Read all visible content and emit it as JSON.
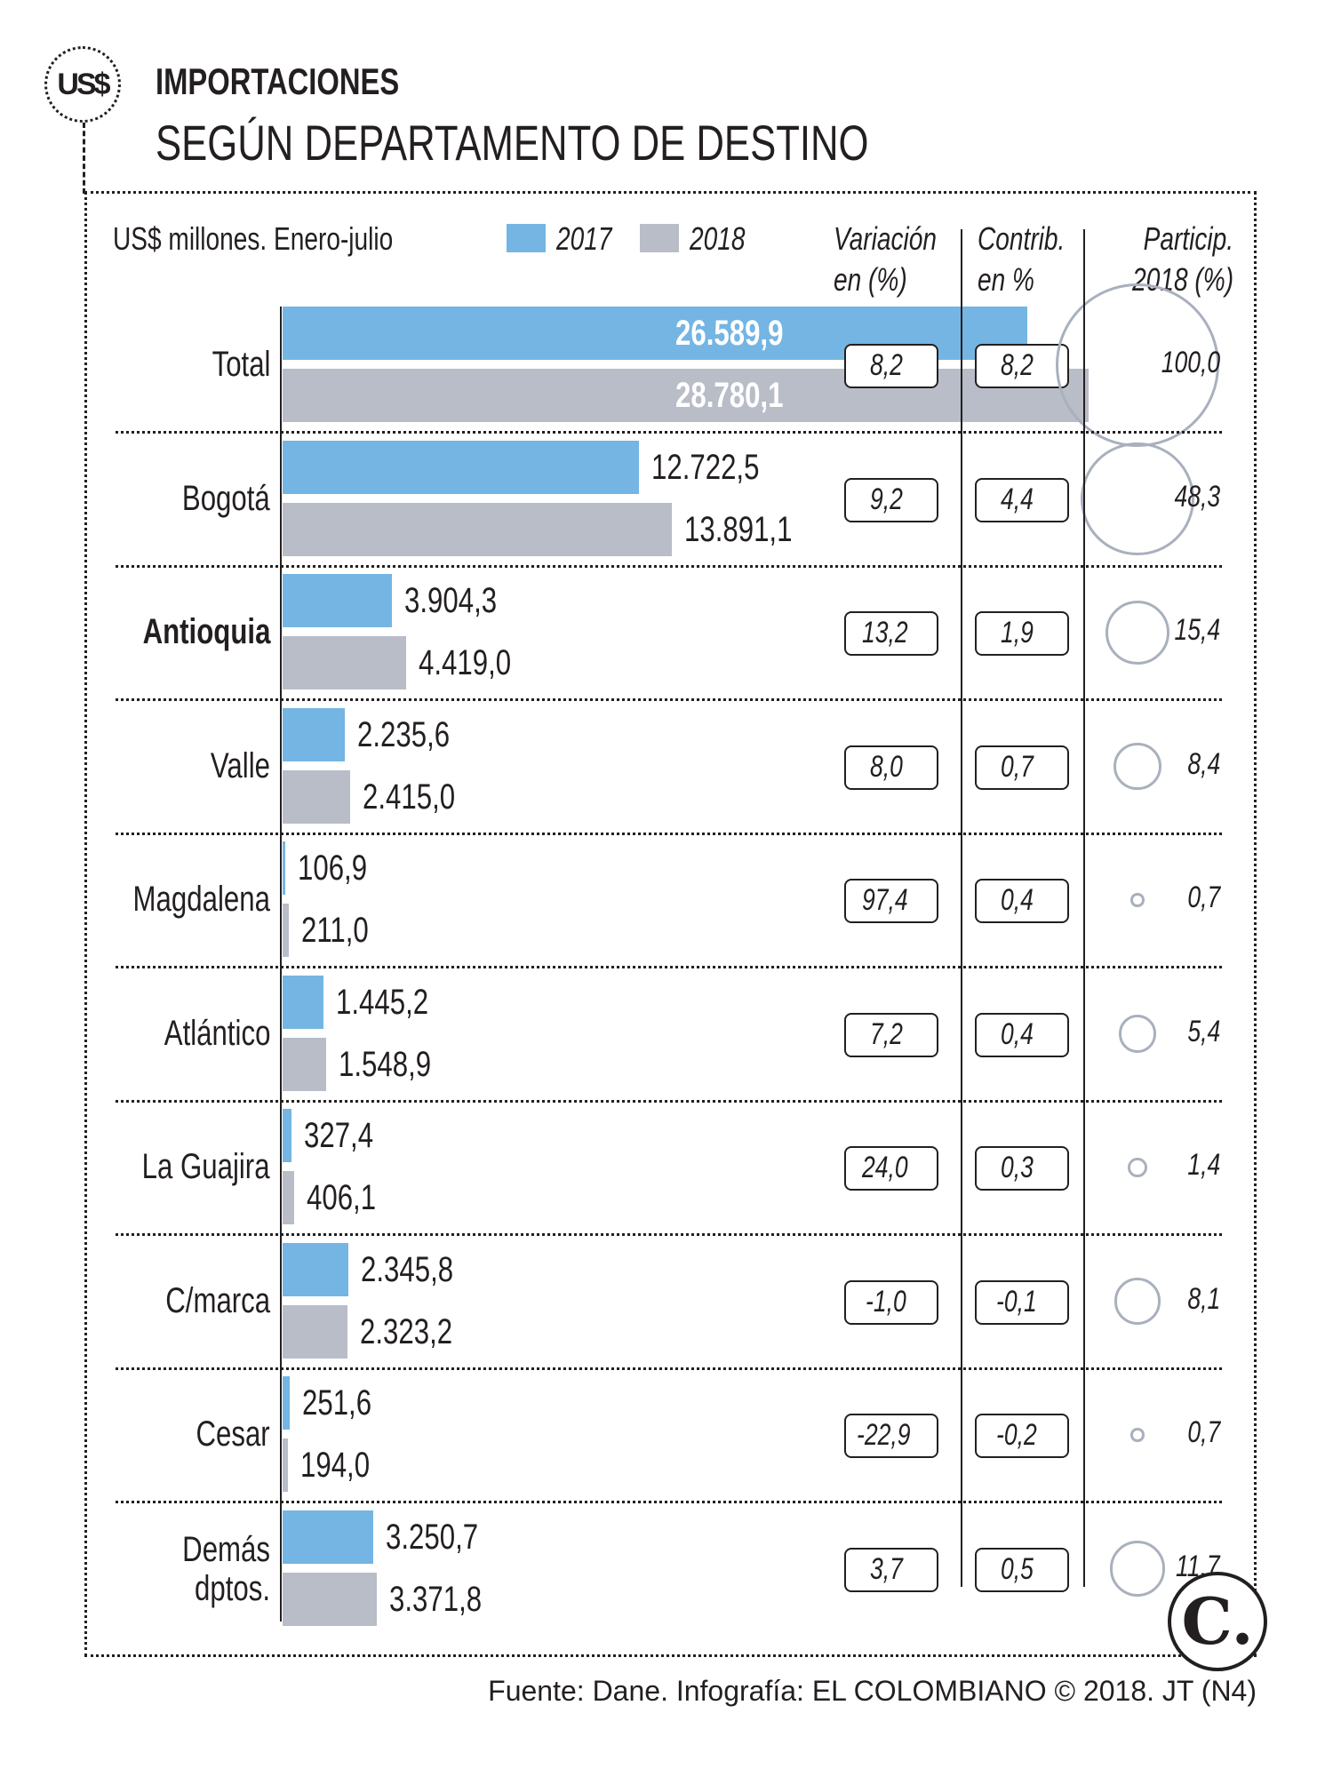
{
  "header": {
    "logo_text": "US$",
    "title": "IMPORTACIONES",
    "subtitle": "SEGÚN DEPARTAMENTO DE DESTINO"
  },
  "chart_data": {
    "type": "bar",
    "orientation": "horizontal",
    "unit_label": "US$ millones. Enero-julio",
    "colors": {
      "2017": "#74b5e3",
      "2018": "#b8bdc8"
    },
    "categories": [
      "Total",
      "Bogotá",
      "Antioquia",
      "Valle",
      "Magdalena",
      "Atlántico",
      "La Guajira",
      "C/marca",
      "Cesar",
      "Demás dptos."
    ],
    "series": [
      {
        "name": "2017",
        "values": [
          26589.9,
          12722.5,
          3904.3,
          2235.6,
          106.9,
          1445.2,
          327.4,
          2345.8,
          251.6,
          3250.7
        ],
        "labels": [
          "26.589,9",
          "12.722,5",
          "3.904,3",
          "2.235,6",
          "106,9",
          "1.445,2",
          "327,4",
          "2.345,8",
          "251,6",
          "3.250,7"
        ]
      },
      {
        "name": "2018",
        "values": [
          28780.1,
          13891.1,
          4419.0,
          2415.0,
          211.0,
          1548.9,
          406.1,
          2323.2,
          194.0,
          3371.8
        ],
        "labels": [
          "28.780,1",
          "13.891,1",
          "4.419,0",
          "2.415,0",
          "211,0",
          "1.548,9",
          "406,1",
          "2.323,2",
          "194,0",
          "3.371,8"
        ]
      }
    ],
    "columns": {
      "variacion": {
        "header1": "Variación",
        "header2": "en (%)",
        "values": [
          "8,2",
          "9,2",
          "13,2",
          "8,0",
          "97,4",
          "7,2",
          "24,0",
          "-1,0",
          "-22,9",
          "3,7"
        ]
      },
      "contrib": {
        "header1": "Contrib.",
        "header2": "en %",
        "values": [
          "8,2",
          "4,4",
          "1,9",
          "0,7",
          "0,4",
          "0,4",
          "0,3",
          "-0,1",
          "-0,2",
          "0,5"
        ]
      },
      "particip": {
        "header1": "Particip.",
        "header2": "2018 (%)",
        "values": [
          "100,0",
          "48,3",
          "15,4",
          "8,4",
          "0,7",
          "5,4",
          "1,4",
          "8,1",
          "0,7",
          "11,7"
        ],
        "numeric": [
          100,
          48.3,
          15.4,
          8.4,
          0.7,
          5.4,
          1.4,
          8.1,
          0.7,
          11.7
        ]
      }
    },
    "bold_category": "Antioquia"
  },
  "footer": {
    "source": "Fuente: Dane. Infografía: EL COLOMBIANO © 2018. JT (N4)",
    "logo_text": "C."
  }
}
